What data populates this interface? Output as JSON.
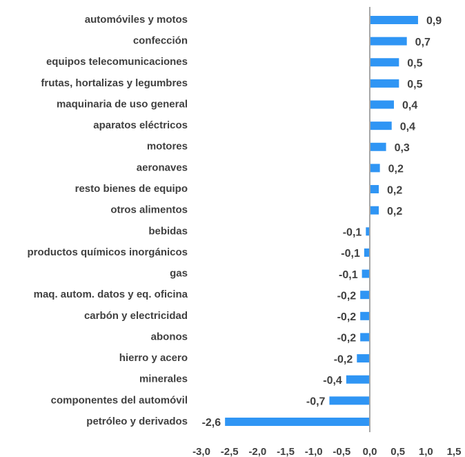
{
  "chart_data": {
    "type": "barh",
    "categories": [
      "automóviles y motos",
      "confección",
      "equipos telecomunicaciones",
      "frutas, hortalizas y legumbres",
      "maquinaria de uso general",
      "aparatos eléctricos",
      "motores",
      "aeronaves",
      "resto bienes de equipo",
      "otros alimentos",
      "bebidas",
      "productos químicos inorgánicos",
      "gas",
      "maq. autom. datos y eq. oficina",
      "carbón y electricidad",
      "abonos",
      "hierro y acero",
      "minerales",
      "componentes del automóvil",
      "petróleo y derivados"
    ],
    "values": [
      0.86,
      0.66,
      0.52,
      0.52,
      0.43,
      0.39,
      0.29,
      0.18,
      0.16,
      0.16,
      -0.07,
      -0.1,
      -0.14,
      -0.17,
      -0.17,
      -0.17,
      -0.23,
      -0.42,
      -0.72,
      -2.58
    ],
    "value_labels": [
      "0,9",
      "0,7",
      "0,5",
      "0,5",
      "0,4",
      "0,4",
      "0,3",
      "0,2",
      "0,2",
      "0,2",
      "-0,1",
      "-0,1",
      "-0,1",
      "-0,2",
      "-0,2",
      "-0,2",
      "-0,2",
      "-0,4",
      "-0,7",
      "-2,6"
    ],
    "color": "#2f95f4",
    "xlim": [
      -3,
      1.5
    ],
    "xticks": [
      {
        "value": -3,
        "label": "-3,0"
      },
      {
        "value": -2.5,
        "label": "-2,5"
      },
      {
        "value": -2,
        "label": "-2,0"
      },
      {
        "value": -1.5,
        "label": "-1,5"
      },
      {
        "value": -1,
        "label": "-1,0"
      },
      {
        "value": -0.5,
        "label": "-0,5"
      },
      {
        "value": 0,
        "label": "0,0"
      },
      {
        "value": 0.5,
        "label": "0,5"
      },
      {
        "value": 1,
        "label": "1,0"
      },
      {
        "value": 1.5,
        "label": "1,5"
      }
    ]
  }
}
